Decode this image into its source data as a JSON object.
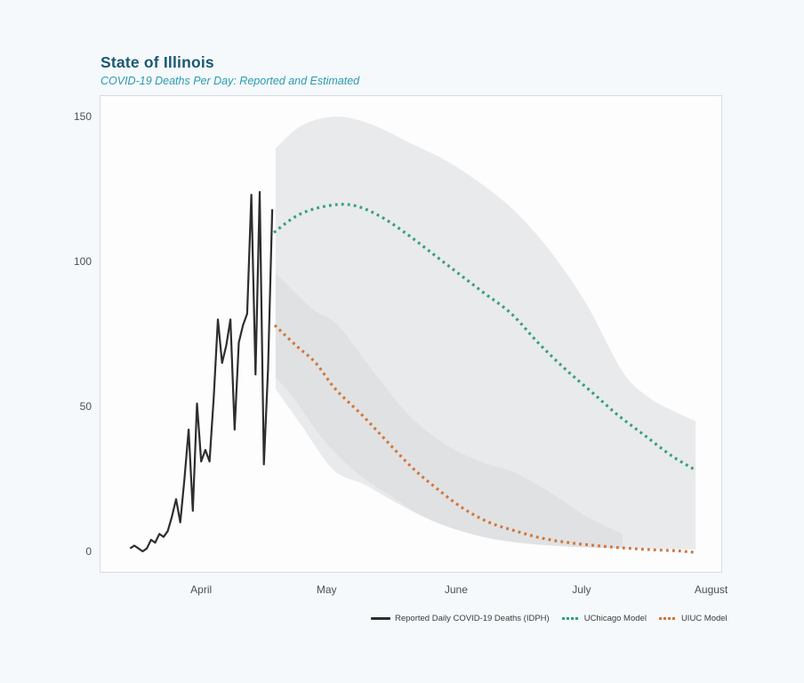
{
  "header": {
    "title": "State of Illinois",
    "subtitle": "COVID-19 Deaths Per Day: Reported and Estimated",
    "title_color": "#1b5872",
    "subtitle_color": "#2b9ab0"
  },
  "legend": {
    "items": [
      {
        "label": "Reported Daily COVID-19 Deaths (IDPH)",
        "swatch": "line",
        "color": "#2e2e2e"
      },
      {
        "label": "UChicago Model",
        "swatch": "dotted",
        "color": "#35a07c"
      },
      {
        "label": "UIUC Model",
        "swatch": "dotted",
        "color": "#d0763c"
      }
    ]
  },
  "chart_data": {
    "type": "line",
    "title": "State of Illinois",
    "subtitle": "COVID-19 Deaths Per Day: Reported and Estimated",
    "xlabel": "",
    "ylabel": "",
    "grid": false,
    "legend_position": "bottom",
    "y_ticks": [
      0,
      50,
      100,
      150
    ],
    "ylim": [
      -7,
      157
    ],
    "x_day0_date": "2020-03-15",
    "xlim_days": [
      -7,
      142
    ],
    "x_tick_labels": [
      "April",
      "May",
      "June",
      "July",
      "August"
    ],
    "x_tick_days": [
      17,
      47,
      78,
      108,
      139
    ],
    "series": [
      {
        "name": "Reported Daily COVID-19 Deaths (IDPH)",
        "style": "solid",
        "color": "#2e2e2e",
        "start_day": 0,
        "values": [
          1,
          2,
          1,
          0,
          1,
          4,
          3,
          6,
          5,
          7,
          12,
          18,
          10,
          25,
          42,
          14,
          51,
          31,
          35,
          31,
          53,
          80,
          65,
          71,
          80,
          42,
          72,
          78,
          82,
          123,
          61,
          124,
          30,
          63,
          118
        ]
      },
      {
        "name": "UChicago Model",
        "style": "dotted",
        "color": "#35a07c",
        "points": [
          [
            34.4,
            110
          ],
          [
            40.2,
            116
          ],
          [
            46.5,
            119
          ],
          [
            52.9,
            119.5
          ],
          [
            59.3,
            116
          ],
          [
            65.7,
            110
          ],
          [
            72.1,
            103
          ],
          [
            78.4,
            96
          ],
          [
            84.8,
            89
          ],
          [
            91.2,
            82
          ],
          [
            97.6,
            72
          ],
          [
            104,
            63
          ],
          [
            110.4,
            55
          ],
          [
            116.7,
            47
          ],
          [
            123.1,
            40
          ],
          [
            129.5,
            33
          ],
          [
            135.3,
            28
          ]
        ]
      },
      {
        "name": "UIUC Model",
        "style": "dotted",
        "color": "#d0763c",
        "points": [
          [
            34.6,
            78
          ],
          [
            39.7,
            71
          ],
          [
            44.4,
            65
          ],
          [
            49.1,
            56
          ],
          [
            55.5,
            47
          ],
          [
            61.4,
            38
          ],
          [
            67.4,
            29
          ],
          [
            73.1,
            22
          ],
          [
            79.5,
            15
          ],
          [
            85.9,
            10
          ],
          [
            92.3,
            7
          ],
          [
            98.7,
            4.5
          ],
          [
            105,
            3
          ],
          [
            111.4,
            2
          ],
          [
            117.8,
            1.2
          ],
          [
            124.2,
            0.6
          ],
          [
            130.6,
            0.2
          ],
          [
            134.8,
            -0.3
          ]
        ]
      }
    ],
    "bands": [
      {
        "name": "uchicago-interval",
        "color": "#e9eaeb",
        "upper": [
          [
            34.8,
            139
          ],
          [
            41.2,
            147
          ],
          [
            49.7,
            150
          ],
          [
            58.2,
            147
          ],
          [
            66.7,
            141
          ],
          [
            75.3,
            135
          ],
          [
            83.8,
            127
          ],
          [
            92.3,
            117
          ],
          [
            100.8,
            103
          ],
          [
            109.3,
            85
          ],
          [
            117.8,
            62
          ],
          [
            124.2,
            53
          ],
          [
            130.6,
            48
          ],
          [
            135.3,
            45
          ]
        ],
        "lower": [
          [
            34.8,
            56
          ],
          [
            41.2,
            43
          ],
          [
            48.7,
            28
          ],
          [
            56.1,
            23
          ],
          [
            64.6,
            16
          ],
          [
            73.1,
            10
          ],
          [
            81.6,
            6
          ],
          [
            90.1,
            3.5
          ],
          [
            100.8,
            2
          ],
          [
            113.6,
            1.2
          ],
          [
            126.3,
            0.8
          ],
          [
            135.3,
            0.6
          ]
        ]
      },
      {
        "name": "uiuc-interval",
        "color": "#e0e1e2",
        "upper": [
          [
            34.8,
            96
          ],
          [
            43.3,
            84
          ],
          [
            49.7,
            78
          ],
          [
            58.2,
            62
          ],
          [
            66.7,
            47
          ],
          [
            75.3,
            37
          ],
          [
            83.8,
            31
          ],
          [
            92.3,
            27
          ],
          [
            100.8,
            20
          ],
          [
            109.3,
            12
          ],
          [
            117.8,
            6
          ]
        ],
        "lower": [
          [
            34.8,
            60
          ],
          [
            39.1,
            53
          ],
          [
            44.4,
            42
          ],
          [
            49.7,
            33
          ],
          [
            56.1,
            25
          ],
          [
            62.5,
            19
          ],
          [
            68.9,
            13
          ],
          [
            75.3,
            9
          ],
          [
            81.6,
            6
          ],
          [
            88,
            4
          ],
          [
            96.5,
            2.5
          ],
          [
            107.2,
            1.5
          ],
          [
            117.8,
            1
          ]
        ]
      }
    ]
  }
}
